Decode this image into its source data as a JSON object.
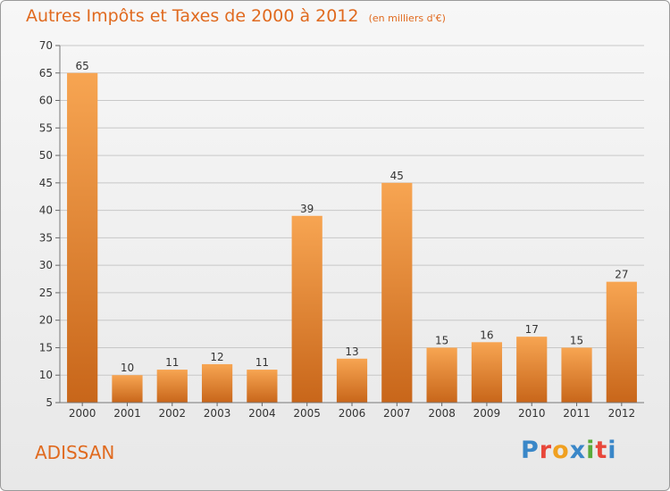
{
  "header": {
    "title": "Autres Impôts et Taxes de 2000 à 2012",
    "subtitle": "(en milliers d'€)"
  },
  "commune": "ADISSAN",
  "brand": {
    "name": "Proxiti",
    "letter_colors": [
      "#3a87c8",
      "#e8473a",
      "#f0a020",
      "#3a87c8",
      "#5aaa3a",
      "#e8473a",
      "#3a87c8"
    ]
  },
  "colors": {
    "accent": "#e06a1f",
    "bar_top": "#f7a552",
    "bar_bottom": "#c8661a",
    "grid": "#c8c8c8",
    "axis_text": "#333333"
  },
  "chart_data": {
    "type": "bar",
    "title": "Autres Impôts et Taxes de 2000 à 2012",
    "subtitle": "(en milliers d'€)",
    "categories": [
      "2000",
      "2001",
      "2002",
      "2003",
      "2004",
      "2005",
      "2006",
      "2007",
      "2008",
      "2009",
      "2010",
      "2011",
      "2012"
    ],
    "values": [
      65,
      10,
      11,
      12,
      11,
      39,
      13,
      45,
      15,
      16,
      17,
      15,
      27
    ],
    "ylim": [
      5,
      70
    ],
    "yticks": [
      5,
      10,
      15,
      20,
      25,
      30,
      35,
      40,
      45,
      50,
      55,
      60,
      65,
      70
    ],
    "grid": true,
    "data_labels": true
  }
}
